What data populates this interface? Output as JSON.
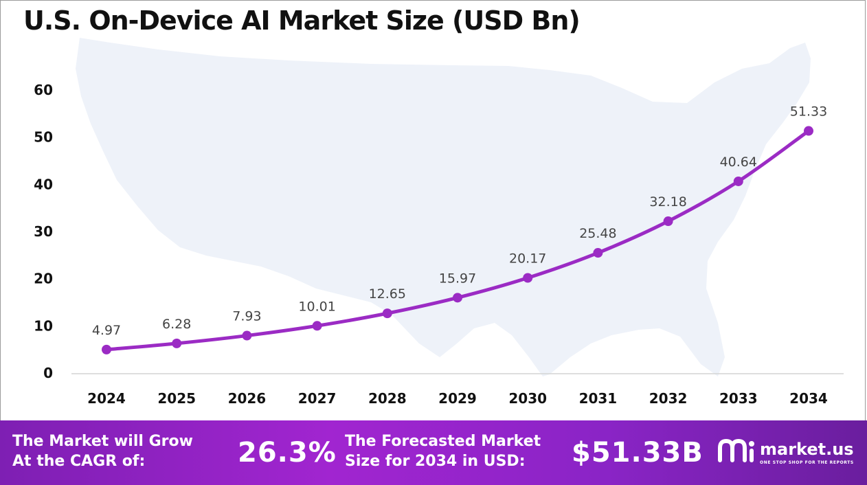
{
  "title": "U.S. On-Device AI Market Size (USD Bn)",
  "chart_data": {
    "type": "line",
    "title": "U.S. On-Device AI Market Size (USD Bn)",
    "xlabel": "",
    "ylabel": "",
    "categories": [
      "2024",
      "2025",
      "2026",
      "2027",
      "2028",
      "2029",
      "2030",
      "2031",
      "2032",
      "2033",
      "2034"
    ],
    "series": [
      {
        "values": [
          4.97,
          6.28,
          7.93,
          10.01,
          12.65,
          15.97,
          20.17,
          25.48,
          32.18,
          40.64,
          51.33
        ]
      }
    ],
    "data_labels": [
      "4.97",
      "6.28",
      "7.93",
      "10.01",
      "12.65",
      "15.97",
      "20.17",
      "25.48",
      "32.18",
      "40.64",
      "51.33"
    ],
    "y_ticks": [
      "0",
      "10",
      "20",
      "30",
      "40",
      "50",
      "60"
    ],
    "y_tick_values": [
      0,
      10,
      20,
      30,
      40,
      50,
      60
    ],
    "ylim": [
      0,
      60
    ],
    "grid": false,
    "legend": "none",
    "line_color": "#9b2bc4",
    "map_color": "#eef2f9"
  },
  "footer": {
    "cagr_label": "The Market will Grow\nAt the CAGR of:",
    "cagr_value": "26.3%",
    "forecast_label": "The Forecasted Market\nSize for 2034 in USD:",
    "forecast_value": "$51.33B",
    "brand_name": "market.us",
    "brand_tagline": "ONE STOP SHOP FOR THE REPORTS",
    "brand_icon": "market-us-logo-icon"
  }
}
